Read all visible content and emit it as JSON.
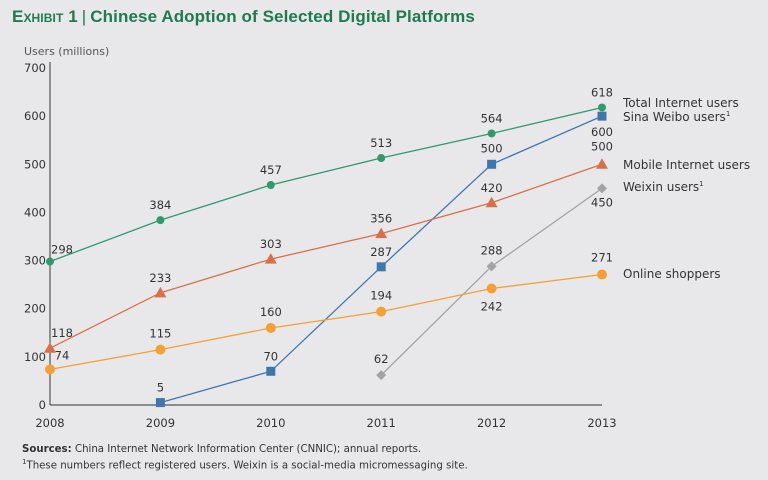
{
  "title": {
    "exhibit": "Exhibit 1",
    "text": "Chinese Adoption of Selected Digital Platforms"
  },
  "footer": {
    "sources_label": "Sources:",
    "sources_text": "China Internet Network Information Center (CNNIC); annual reports.",
    "note_mark": "1",
    "note_text": "These numbers reflect registered users. Weixin is a social-media micromessaging site."
  },
  "chart_data": {
    "type": "line",
    "title": "Chinese Adoption of Selected Digital Platforms",
    "xlabel": "",
    "ylabel": "Users (millions)",
    "x": [
      2008,
      2009,
      2010,
      2011,
      2012,
      2013
    ],
    "xticks": [
      "2008",
      "2009",
      "2010",
      "2011",
      "2012",
      "2013"
    ],
    "ylim": [
      0,
      700
    ],
    "yticks": [
      0,
      100,
      200,
      300,
      400,
      500,
      600,
      700
    ],
    "grid": false,
    "legend": "right (labels at line ends)",
    "series": [
      {
        "name": "Total Internet users",
        "footnote": "",
        "color": "#2e9a6e",
        "marker": "circle",
        "x": [
          2008,
          2009,
          2010,
          2011,
          2012,
          2013
        ],
        "values": [
          298,
          384,
          457,
          513,
          564,
          618
        ]
      },
      {
        "name": "Sina Weibo users",
        "footnote": "1",
        "color": "#3f77ad",
        "marker": "square",
        "x": [
          2009,
          2010,
          2011,
          2012,
          2013
        ],
        "values": [
          5,
          70,
          287,
          500,
          600
        ]
      },
      {
        "name": "Mobile Internet users",
        "footnote": "",
        "color": "#d8704a",
        "marker": "triangle",
        "x": [
          2008,
          2009,
          2010,
          2011,
          2012,
          2013
        ],
        "values": [
          118,
          233,
          303,
          356,
          420,
          500
        ]
      },
      {
        "name": "Weixin users",
        "footnote": "1",
        "color": "#a3a3a5",
        "marker": "diamond",
        "x": [
          2011,
          2012,
          2013
        ],
        "values": [
          62,
          288,
          450
        ]
      },
      {
        "name": "Online shoppers",
        "footnote": "",
        "color": "#f5a034",
        "marker": "circle-large",
        "x": [
          2008,
          2009,
          2010,
          2011,
          2012,
          2013
        ],
        "values": [
          74,
          115,
          160,
          194,
          242,
          271
        ]
      }
    ]
  }
}
